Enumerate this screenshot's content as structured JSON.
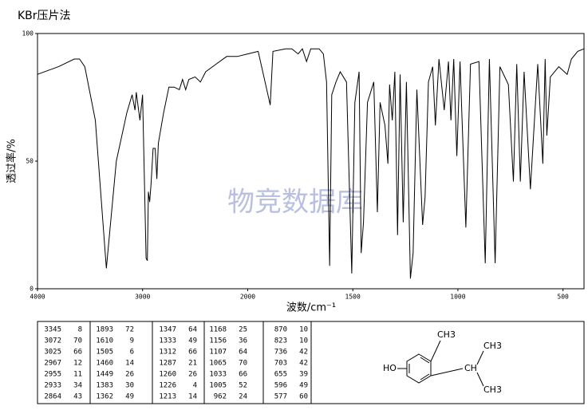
{
  "chart_data": {
    "type": "line",
    "title": "KBr压片法",
    "watermark": "物竞数据库",
    "x_label": "波数/cm⁻¹",
    "y_label": "透过率/%",
    "xlim": [
      4000,
      400
    ],
    "xticks": [
      4000,
      3000,
      2000,
      1500,
      1000,
      500
    ],
    "ylim": [
      0,
      100
    ],
    "yticks": [
      0,
      50,
      100
    ],
    "x": [
      4000,
      3800,
      3650,
      3600,
      3550,
      3450,
      3345,
      3250,
      3150,
      3100,
      3072,
      3060,
      3025,
      3000,
      2967,
      2955,
      2945,
      2933,
      2920,
      2900,
      2880,
      2864,
      2850,
      2800,
      2750,
      2700,
      2650,
      2620,
      2590,
      2560,
      2500,
      2450,
      2400,
      2300,
      2200,
      2100,
      2000,
      1950,
      1893,
      1880,
      1820,
      1790,
      1760,
      1740,
      1720,
      1700,
      1660,
      1640,
      1625,
      1610,
      1600,
      1580,
      1560,
      1530,
      1505,
      1490,
      1470,
      1460,
      1449,
      1430,
      1400,
      1383,
      1370,
      1347,
      1333,
      1325,
      1312,
      1300,
      1287,
      1275,
      1260,
      1245,
      1226,
      1213,
      1195,
      1168,
      1156,
      1140,
      1120,
      1107,
      1090,
      1065,
      1045,
      1033,
      1020,
      1005,
      990,
      962,
      940,
      900,
      870,
      850,
      823,
      800,
      760,
      736,
      720,
      703,
      685,
      655,
      620,
      596,
      585,
      577,
      560,
      520,
      480,
      460,
      430,
      400
    ],
    "series": [
      {
        "color": "#000000",
        "values": [
          84,
          87,
          90,
          90,
          87,
          66,
          8,
          50,
          69,
          76,
          70,
          77,
          66,
          76,
          12,
          11,
          38,
          34,
          41,
          55,
          55,
          43,
          57,
          69,
          79,
          79,
          78,
          82,
          78,
          82,
          83,
          81,
          85,
          88,
          91,
          91,
          92,
          93,
          72,
          93,
          94,
          94,
          92,
          94,
          89,
          94,
          94,
          92,
          81,
          9,
          76,
          81,
          85,
          81,
          6,
          73,
          85,
          14,
          26,
          73,
          81,
          30,
          73,
          64,
          49,
          80,
          66,
          85,
          21,
          84,
          26,
          81,
          4,
          14,
          78,
          25,
          36,
          81,
          87,
          64,
          90,
          70,
          89,
          66,
          90,
          52,
          89,
          24,
          88,
          89,
          10,
          90,
          10,
          87,
          80,
          42,
          88,
          42,
          85,
          39,
          88,
          49,
          90,
          60,
          83,
          87,
          84,
          90,
          93,
          94
        ]
      }
    ],
    "peak_table": [
      [
        [
          3345,
          8
        ],
        [
          3072,
          70
        ],
        [
          3025,
          66
        ],
        [
          2967,
          12
        ],
        [
          2955,
          11
        ],
        [
          2933,
          34
        ],
        [
          2864,
          43
        ]
      ],
      [
        [
          1893,
          72
        ],
        [
          1610,
          9
        ],
        [
          1505,
          6
        ],
        [
          1460,
          14
        ],
        [
          1449,
          26
        ],
        [
          1383,
          30
        ],
        [
          1362,
          49
        ]
      ],
      [
        [
          1347,
          64
        ],
        [
          1333,
          49
        ],
        [
          1312,
          66
        ],
        [
          1287,
          21
        ],
        [
          1260,
          26
        ],
        [
          1226,
          4
        ],
        [
          1213,
          14
        ]
      ],
      [
        [
          1168,
          25
        ],
        [
          1156,
          36
        ],
        [
          1107,
          64
        ],
        [
          1065,
          70
        ],
        [
          1033,
          66
        ],
        [
          1005,
          52
        ],
        [
          962,
          24
        ]
      ],
      [
        [
          870,
          10
        ],
        [
          823,
          10
        ],
        [
          736,
          42
        ],
        [
          703,
          42
        ],
        [
          655,
          39
        ],
        [
          596,
          49
        ],
        [
          577,
          60
        ]
      ]
    ],
    "structure_labels": {
      "hydroxyl": "HO",
      "methyl_top": "CH3",
      "methine": "CH",
      "methyl_upper": "CH3",
      "methyl_lower": "CH3"
    }
  }
}
